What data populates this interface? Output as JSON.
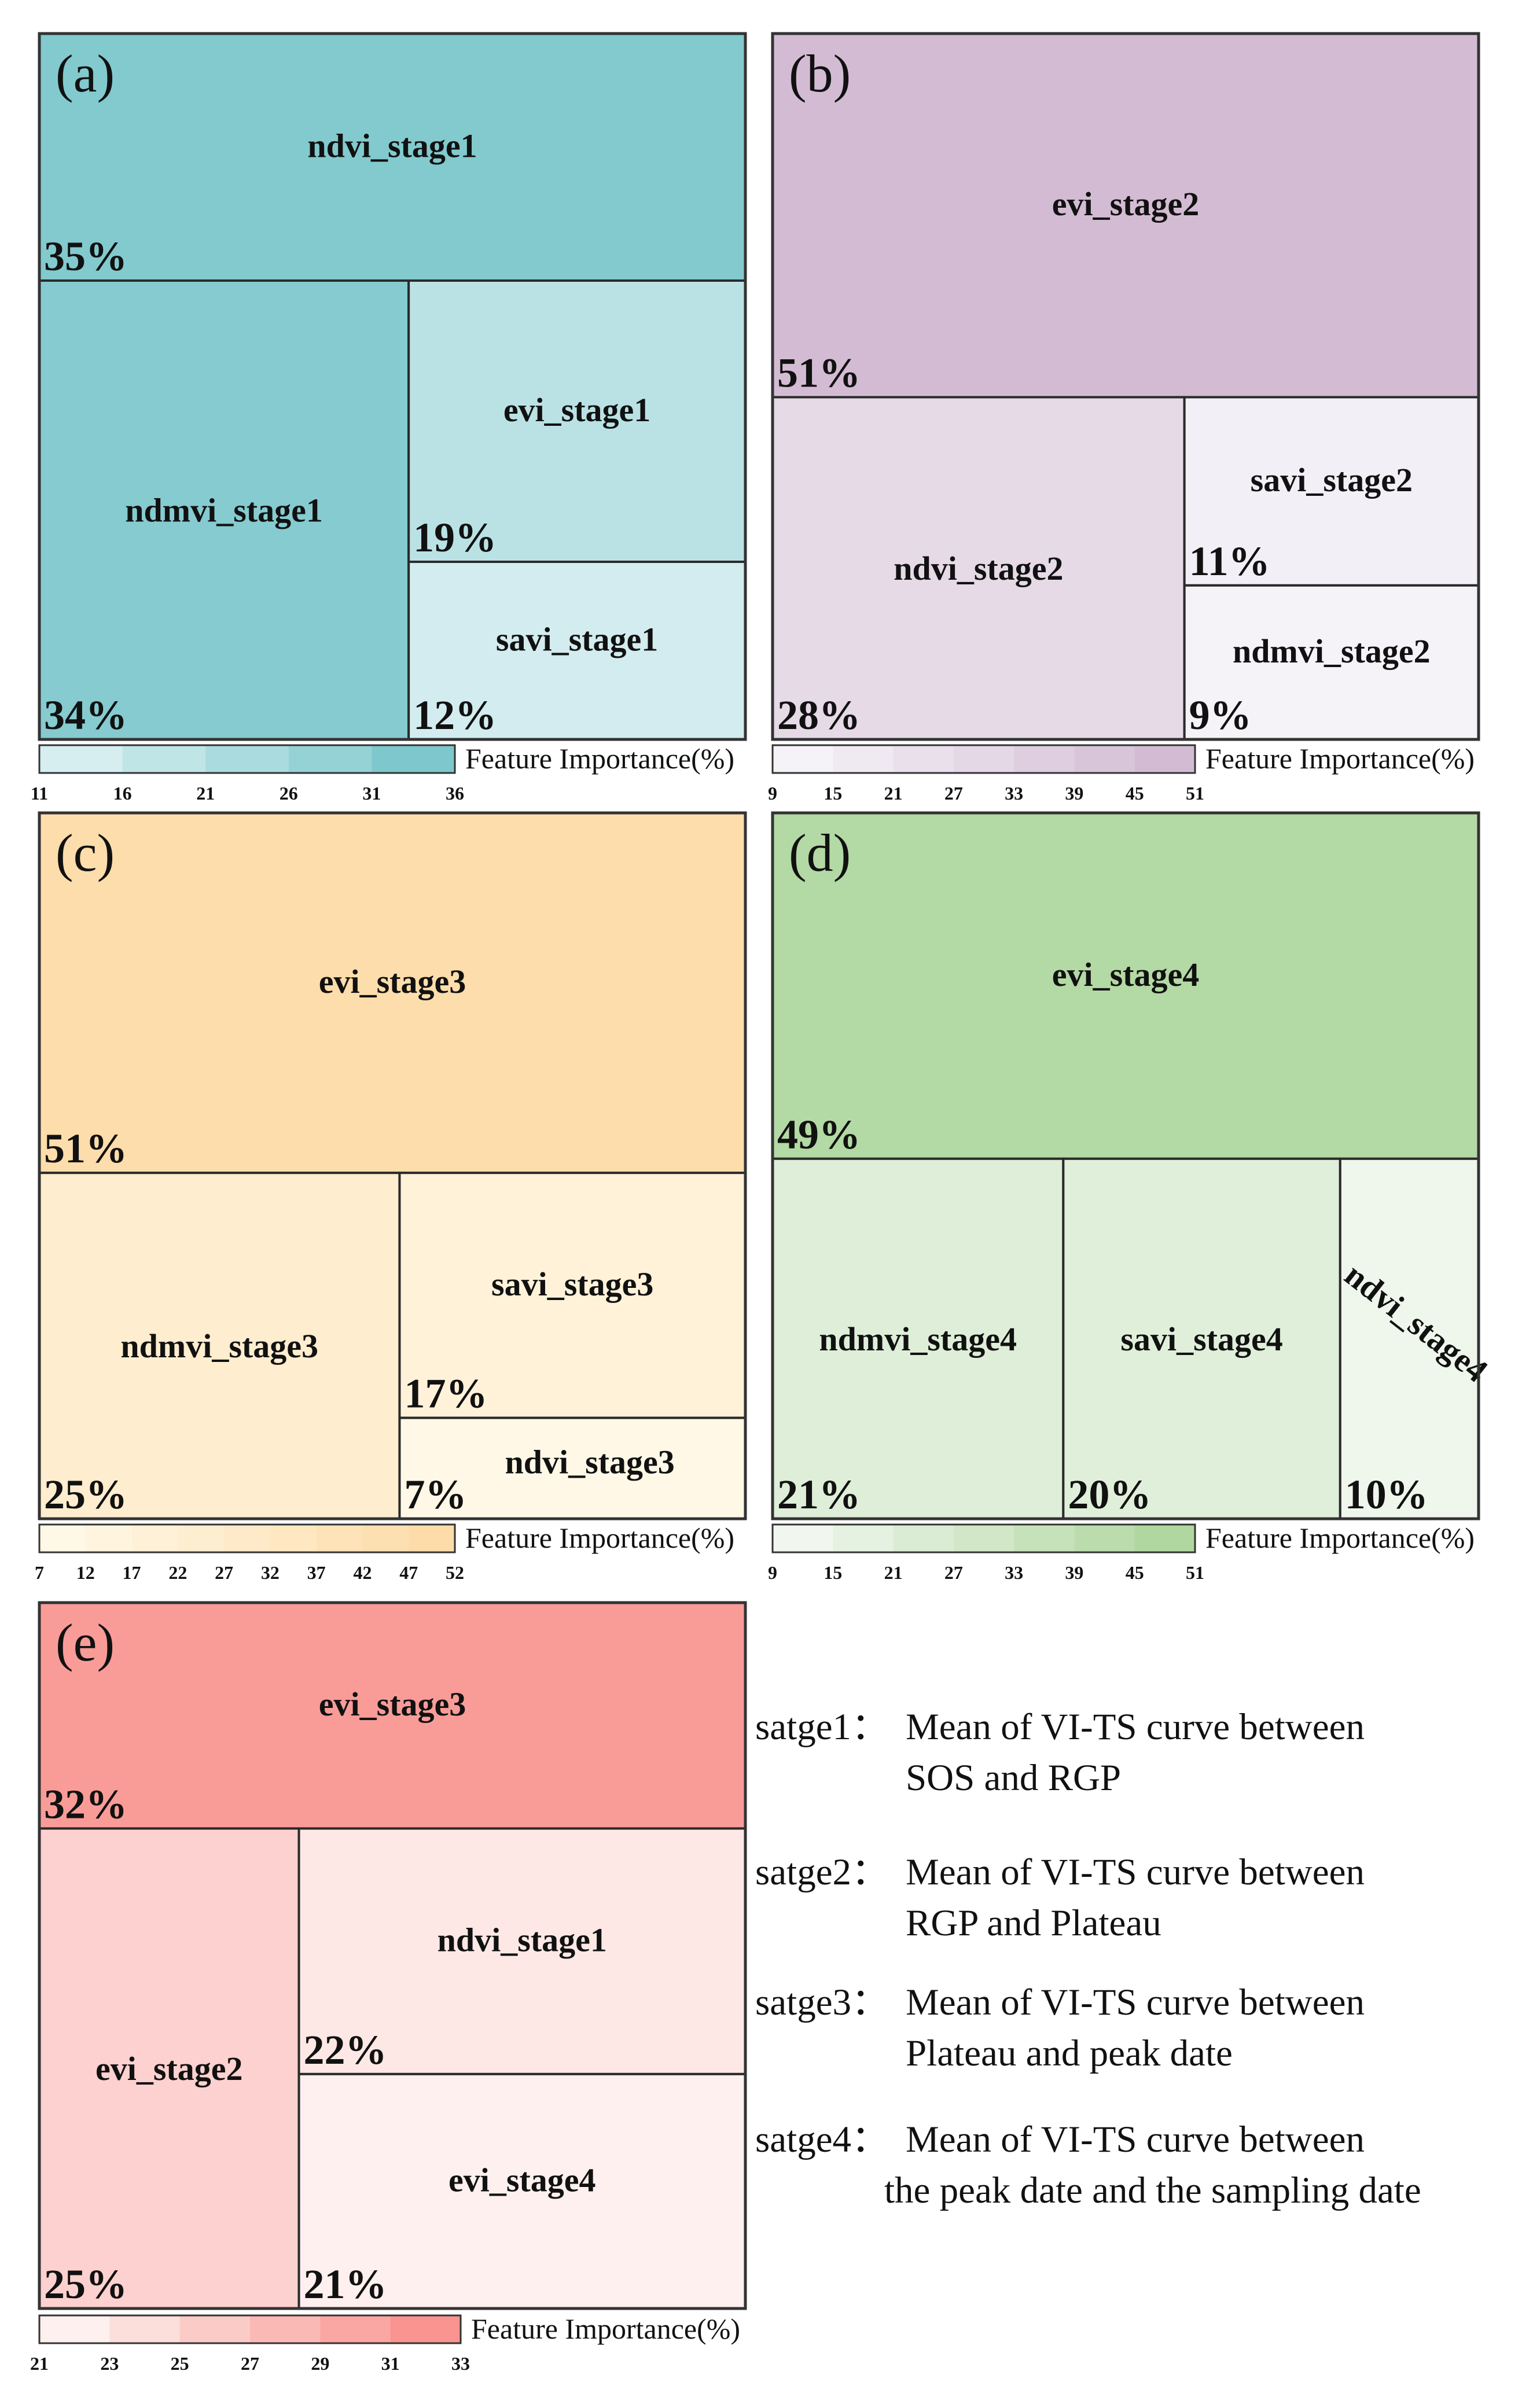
{
  "chart_data": [
    {
      "type": "treemap",
      "panel": "(a)",
      "legend_title": "Feature Importance(%)",
      "ticks": [
        "11",
        "16",
        "21",
        "26",
        "31",
        "36"
      ],
      "colors": {
        "light": "#d6eef0",
        "dark": "#7ec8cd"
      },
      "items": [
        {
          "label": "ndvi_stage1",
          "value": 35,
          "pct": "35%"
        },
        {
          "label": "ndmvi_stage1",
          "value": 34,
          "pct": "34%"
        },
        {
          "label": "evi_stage1",
          "value": 19,
          "pct": "19%"
        },
        {
          "label": "savi_stage1",
          "value": 12,
          "pct": "12%"
        }
      ]
    },
    {
      "type": "treemap",
      "panel": "(b)",
      "legend_title": "Feature Importance(%)",
      "ticks": [
        "9",
        "15",
        "21",
        "27",
        "33",
        "39",
        "45",
        "51"
      ],
      "colors": {
        "light": "#f5f2f8",
        "dark": "#d3bcd3"
      },
      "items": [
        {
          "label": "evi_stage2",
          "value": 51,
          "pct": "51%"
        },
        {
          "label": "ndvi_stage2",
          "value": 28,
          "pct": "28%"
        },
        {
          "label": "savi_stage2",
          "value": 11,
          "pct": "11%"
        },
        {
          "label": "ndmvi_stage2",
          "value": 9,
          "pct": "9%"
        }
      ]
    },
    {
      "type": "treemap",
      "panel": "(c)",
      "legend_title": "Feature Importance(%)",
      "ticks": [
        "7",
        "12",
        "17",
        "22",
        "27",
        "32",
        "37",
        "42",
        "47",
        "52"
      ],
      "colors": {
        "light": "#fff8e6",
        "dark": "#fddcaa"
      },
      "items": [
        {
          "label": "evi_stage3",
          "value": 51,
          "pct": "51%"
        },
        {
          "label": "ndmvi_stage3",
          "value": 25,
          "pct": "25%"
        },
        {
          "label": "savi_stage3",
          "value": 17,
          "pct": "17%"
        },
        {
          "label": "ndvi_stage3",
          "value": 7,
          "pct": "7%"
        }
      ]
    },
    {
      "type": "treemap",
      "panel": "(d)",
      "legend_title": "Feature Importance(%)",
      "ticks": [
        "9",
        "15",
        "21",
        "27",
        "33",
        "39",
        "45",
        "51"
      ],
      "colors": {
        "light": "#f1f7ee",
        "dark": "#b0d7a0"
      },
      "items": [
        {
          "label": "evi_stage4",
          "value": 49,
          "pct": "49%"
        },
        {
          "label": "ndmvi_stage4",
          "value": 21,
          "pct": "21%"
        },
        {
          "label": "savi_stage4",
          "value": 20,
          "pct": "20%"
        },
        {
          "label": "ndvi_stage4",
          "value": 10,
          "pct": "10%"
        }
      ]
    },
    {
      "type": "treemap",
      "panel": "(e)",
      "legend_title": "Feature Importance(%)",
      "ticks": [
        "21",
        "23",
        "25",
        "27",
        "29",
        "31",
        "33"
      ],
      "colors": {
        "light": "#fdf0ee",
        "dark": "#f99490"
      },
      "items": [
        {
          "label": "evi_stage3",
          "value": 32,
          "pct": "32%"
        },
        {
          "label": "evi_stage2",
          "value": 25,
          "pct": "25%"
        },
        {
          "label": "ndvi_stage1",
          "value": 22,
          "pct": "22%"
        },
        {
          "label": "evi_stage4",
          "value": 21,
          "pct": "21%"
        }
      ]
    }
  ],
  "notes": [
    {
      "key": "satge1：",
      "line1": "Mean of VI-TS curve between",
      "line2": "SOS and RGP"
    },
    {
      "key": "satge2：",
      "line1": "Mean of VI-TS curve between",
      "line2": "RGP and Plateau"
    },
    {
      "key": "satge3：",
      "line1": "Mean of VI-TS curve between",
      "line2": "Plateau and peak date"
    },
    {
      "key": "satge4：",
      "line1": "Mean of VI-TS curve between",
      "line2": "the peak date and the sampling date"
    }
  ]
}
